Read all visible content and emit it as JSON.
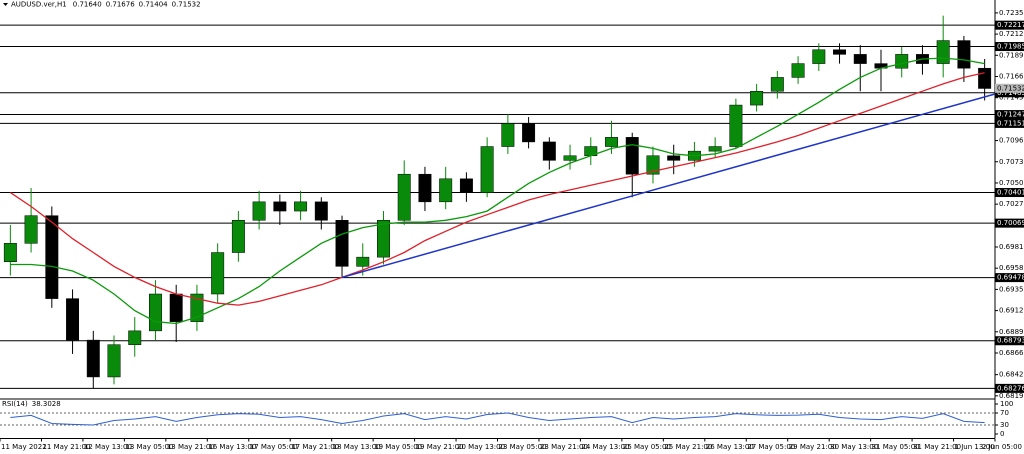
{
  "chart_data": [
    {
      "type": "candlestick",
      "title": "AUDUSD.ver,H1",
      "header_values": [
        {
          "value": 0.7164,
          "label": "0.71640"
        },
        0.71676,
        0.71404,
        0.71532
      ],
      "open": [
        0.6965,
        0.6985,
        0.7015,
        0.6925,
        0.688,
        0.684,
        0.6875,
        0.689,
        0.693,
        0.69,
        0.693,
        0.6975,
        0.701,
        0.703,
        0.702,
        0.703,
        0.701,
        0.696,
        0.697,
        0.701,
        0.706,
        0.703,
        0.7055,
        0.704,
        0.709,
        0.7115,
        0.7095,
        0.7075,
        0.708,
        0.709,
        0.71,
        0.706,
        0.708,
        0.7075,
        0.7085,
        0.709,
        0.7135,
        0.715,
        0.7165,
        0.718,
        0.7195,
        0.719,
        0.718,
        0.7175,
        0.719,
        0.718,
        0.7205,
        0.7175
      ],
      "high": [
        0.7005,
        0.7045,
        0.7025,
        0.6935,
        0.689,
        0.6885,
        0.6905,
        0.6945,
        0.694,
        0.694,
        0.6985,
        0.702,
        0.7042,
        0.7038,
        0.7042,
        0.7035,
        0.7015,
        0.6985,
        0.702,
        0.7075,
        0.7068,
        0.7068,
        0.7062,
        0.71,
        0.7125,
        0.7122,
        0.71,
        0.7092,
        0.71,
        0.7118,
        0.7105,
        0.709,
        0.7092,
        0.7095,
        0.71,
        0.7142,
        0.7158,
        0.7172,
        0.7188,
        0.7202,
        0.7202,
        0.72,
        0.7195,
        0.7198,
        0.72,
        0.7232,
        0.721,
        0.7185
      ],
      "low": [
        0.695,
        0.6975,
        0.6915,
        0.6865,
        0.6828,
        0.6832,
        0.6862,
        0.688,
        0.6878,
        0.689,
        0.692,
        0.6965,
        0.7,
        0.7005,
        0.701,
        0.7,
        0.6948,
        0.695,
        0.6962,
        0.7005,
        0.702,
        0.7022,
        0.703,
        0.7035,
        0.7082,
        0.7088,
        0.7065,
        0.7065,
        0.707,
        0.7082,
        0.7035,
        0.705,
        0.706,
        0.7068,
        0.7078,
        0.7088,
        0.7128,
        0.7142,
        0.7158,
        0.7172,
        0.718,
        0.715,
        0.715,
        0.7165,
        0.7168,
        0.7165,
        0.716,
        0.714
      ],
      "close": [
        0.6985,
        0.7015,
        0.6925,
        0.688,
        0.684,
        0.6875,
        0.689,
        0.693,
        0.69,
        0.693,
        0.6975,
        0.701,
        0.703,
        0.702,
        0.703,
        0.701,
        0.696,
        0.697,
        0.701,
        0.706,
        0.703,
        0.7055,
        0.704,
        0.709,
        0.7115,
        0.7095,
        0.7075,
        0.708,
        0.709,
        0.71,
        0.706,
        0.708,
        0.7075,
        0.7085,
        0.709,
        0.7135,
        0.715,
        0.7165,
        0.718,
        0.7195,
        0.719,
        0.718,
        0.7175,
        0.719,
        0.718,
        0.7205,
        0.7175,
        0.7153
      ],
      "up_color": "#0a8a0a",
      "down_color": "#000000",
      "overlays": [
        {
          "color": "#0a9a0a",
          "values": [
            0.6962,
            0.6962,
            0.696,
            0.6955,
            0.6945,
            0.693,
            0.6912,
            0.69,
            0.6898,
            0.6905,
            0.6915,
            0.6925,
            0.6938,
            0.6955,
            0.697,
            0.6985,
            0.6995,
            0.7002,
            0.7006,
            0.7008,
            0.7008,
            0.701,
            0.7014,
            0.702,
            0.7035,
            0.705,
            0.7062,
            0.7072,
            0.708,
            0.7088,
            0.7092,
            0.7088,
            0.7082,
            0.708,
            0.7082,
            0.7088,
            0.71,
            0.7112,
            0.7125,
            0.7138,
            0.7152,
            0.7165,
            0.7175,
            0.718,
            0.7185,
            0.7186,
            0.7184,
            0.718
          ]
        },
        {
          "color": "#e0202a",
          "values": [
            0.704,
            0.7025,
            0.7008,
            0.699,
            0.6975,
            0.696,
            0.6948,
            0.6938,
            0.693,
            0.6925,
            0.692,
            0.6918,
            0.6922,
            0.6928,
            0.6934,
            0.694,
            0.6948,
            0.6956,
            0.6965,
            0.6975,
            0.6988,
            0.6998,
            0.7008,
            0.7016,
            0.7024,
            0.7032,
            0.7038,
            0.7043,
            0.7048,
            0.7053,
            0.7058,
            0.7063,
            0.7068,
            0.7073,
            0.7078,
            0.7083,
            0.7089,
            0.7095,
            0.7102,
            0.711,
            0.7118,
            0.7126,
            0.7134,
            0.7142,
            0.715,
            0.7158,
            0.7165,
            0.717
          ]
        }
      ],
      "trendline": {
        "color": "#1f35c8",
        "x": [
          16.5,
          48
        ],
        "values": [
          0.6948,
          0.7147
        ]
      },
      "levels": [
        0.72217,
        0.71985,
        0.71483,
        0.71247,
        0.71151,
        0.70401,
        0.70069,
        0.69478,
        0.68793,
        0.68276
      ],
      "level_color": "#000000",
      "last_price": 0.71532,
      "xlim": [
        0,
        48
      ],
      "ylim": [
        0.6815,
        0.7249
      ],
      "yticks": [
        {
          "value": 0.7235,
          "label": "0.72350"
        },
        {
          "value": 0.7212,
          "label": "0.72120"
        },
        {
          "value": 0.7189,
          "label": "0.71890"
        },
        {
          "value": 0.7166,
          "label": "0.71660"
        },
        {
          "value": 0.7143,
          "label": "0.71430"
        },
        0.70965,
        0.70735,
        0.70505,
        0.70275,
        {
          "value": 0.6981,
          "label": "0.69810"
        },
        {
          "value": 0.6958,
          "label": "0.69580"
        },
        {
          "value": 0.6935,
          "label": "0.69350"
        },
        {
          "value": 0.6912,
          "label": "0.69120"
        },
        {
          "value": 0.6889,
          "label": "0.68890"
        },
        {
          "value": 0.6866,
          "label": "0.68660"
        },
        0.68425,
        0.68195
      ]
    },
    {
      "type": "line",
      "title": "RSI(14)",
      "current": 38.3028,
      "color": "#2f5fd0",
      "values": [
        55,
        62,
        35,
        32,
        30,
        45,
        50,
        58,
        42,
        55,
        64,
        68,
        66,
        55,
        58,
        48,
        35,
        45,
        60,
        68,
        48,
        58,
        50,
        65,
        70,
        55,
        45,
        50,
        55,
        58,
        38,
        55,
        50,
        55,
        58,
        68,
        64,
        62,
        63,
        66,
        55,
        50,
        48,
        58,
        52,
        68,
        42,
        38
      ],
      "levels": [
        70,
        30
      ],
      "xlim": [
        0,
        48
      ],
      "ylim": [
        0,
        100
      ],
      "yticks": [
        0,
        30,
        70,
        100
      ],
      "xticks": [
        {
          "value": 0,
          "label": "11 May 2022"
        },
        {
          "value": 2,
          "label": "11 May 21:00"
        },
        {
          "value": 4,
          "label": "12 May 13:00"
        },
        {
          "value": 6,
          "label": "13 May 05:00"
        },
        {
          "value": 8,
          "label": "13 May 21:00"
        },
        {
          "value": 10,
          "label": "16 May 13:00"
        },
        {
          "value": 12,
          "label": "17 May 05:00"
        },
        {
          "value": 14,
          "label": "17 May 21:00"
        },
        {
          "value": 16,
          "label": "18 May 13:00"
        },
        {
          "value": 18,
          "label": "19 May 05:00"
        },
        {
          "value": 20,
          "label": "19 May 21:00"
        },
        {
          "value": 22,
          "label": "20 May 13:00"
        },
        {
          "value": 24,
          "label": "23 May 05:00"
        },
        {
          "value": 26,
          "label": "23 May 21:00"
        },
        {
          "value": 28,
          "label": "24 May 13:00"
        },
        {
          "value": 30,
          "label": "25 May 05:00"
        },
        {
          "value": 32,
          "label": "25 May 21:00"
        },
        {
          "value": 34,
          "label": "26 May 13:00"
        },
        {
          "value": 36,
          "label": "27 May 05:00"
        },
        {
          "value": 38,
          "label": "29 May 21:00"
        },
        {
          "value": 40,
          "label": "30 May 13:00"
        },
        {
          "value": 42,
          "label": "31 May 05:00"
        },
        {
          "value": 44,
          "label": "31 May 21:00"
        },
        {
          "value": 46,
          "label": "1 Jun 13:00"
        },
        {
          "value": 48,
          "label": "2 Jun 05:00"
        }
      ]
    }
  ]
}
